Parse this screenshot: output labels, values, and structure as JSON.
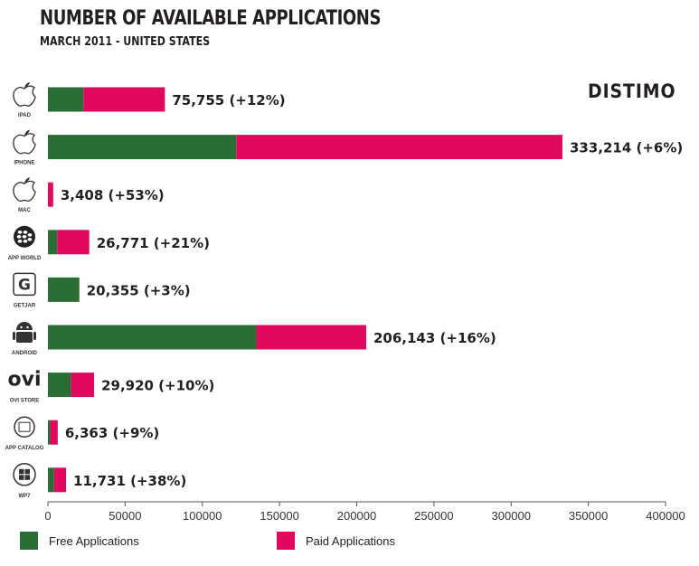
{
  "header": {
    "title": "NUMBER OF AVAILABLE APPLICATIONS",
    "subtitle": "MARCH 2011  - UNITED STATES",
    "brand": "DISTIMO"
  },
  "colors": {
    "free": "#2b6e35",
    "paid": "#e0095f",
    "axis": "#555555"
  },
  "chart_data": {
    "type": "bar",
    "orientation": "horizontal",
    "stacked": true,
    "title": "NUMBER OF AVAILABLE APPLICATIONS",
    "subtitle": "MARCH 2011  - UNITED STATES",
    "categories": [
      "IPAD",
      "IPHONE",
      "MAC",
      "APP WORLD",
      "GETJAR",
      "ANDROID",
      "OVI STORE",
      "APP CATALOG",
      "WP7"
    ],
    "icons": [
      "apple-icon",
      "apple-icon",
      "apple-icon",
      "blackberry-icon",
      "getjar-icon",
      "android-icon",
      "ovi-icon",
      "palm-icon",
      "windows-icon"
    ],
    "series": [
      {
        "name": "Free Applications",
        "color": "#2b6e35",
        "values": [
          23000,
          122000,
          0,
          6000,
          20355,
          135000,
          15000,
          1500,
          4000
        ]
      },
      {
        "name": "Paid Applications",
        "color": "#e0095f",
        "values": [
          52755,
          211214,
          3408,
          20771,
          0,
          71143,
          14920,
          4863,
          7731
        ]
      }
    ],
    "data_labels": [
      "75,755 (+12%)",
      "333,214 (+6%)",
      "3,408 (+53%)",
      "26,771 (+21%)",
      "20,355 (+3%)",
      "206,143 (+16%)",
      "29,920 (+10%)",
      "6,363 (+9%)",
      "11,731 (+38%)"
    ],
    "xlim": [
      0,
      400000
    ],
    "xticks": [
      0,
      50000,
      100000,
      150000,
      200000,
      250000,
      300000,
      350000,
      400000
    ],
    "xtick_labels": [
      "0",
      "50000",
      "100000",
      "150000",
      "200000",
      "250000",
      "300000",
      "350000",
      "400000"
    ],
    "grid": false,
    "legend_position": "bottom-left"
  }
}
